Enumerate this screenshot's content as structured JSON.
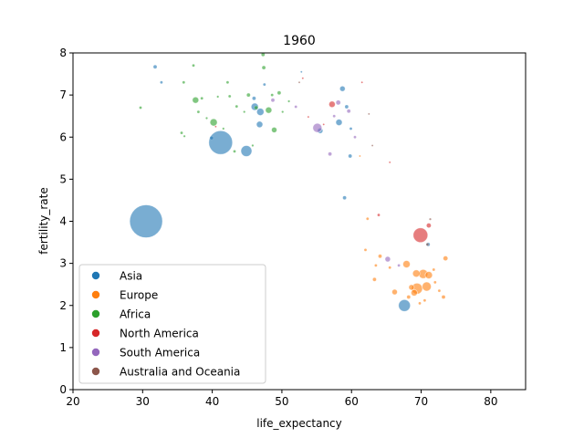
{
  "chart_data": {
    "type": "scatter",
    "title": "1960",
    "xlabel": "life_expectancy",
    "ylabel": "fertility_rate",
    "xlim": [
      20,
      85
    ],
    "ylim": [
      0,
      8
    ],
    "x_ticks": [
      20,
      30,
      40,
      50,
      60,
      70,
      80
    ],
    "y_ticks": [
      0,
      1,
      2,
      3,
      4,
      5,
      6,
      7,
      8
    ],
    "grid": false,
    "legend_position": "lower-left",
    "point_alpha": 0.6,
    "size_encodes": "population",
    "series": [
      {
        "name": "Asia",
        "color": "#1f77b4",
        "points": [
          {
            "x": 30.5,
            "y": 4.0,
            "r": 18
          },
          {
            "x": 41.2,
            "y": 5.87,
            "r": 13
          },
          {
            "x": 67.6,
            "y": 2.0,
            "r": 6.5
          },
          {
            "x": 44.9,
            "y": 5.67,
            "r": 6
          },
          {
            "x": 46.9,
            "y": 6.6,
            "r": 4
          },
          {
            "x": 46.1,
            "y": 6.72,
            "r": 4
          },
          {
            "x": 46.8,
            "y": 6.3,
            "r": 3.5
          },
          {
            "x": 58.2,
            "y": 6.35,
            "r": 3.5
          },
          {
            "x": 55.5,
            "y": 6.15,
            "r": 3
          },
          {
            "x": 58.7,
            "y": 7.15,
            "r": 3
          },
          {
            "x": 59.8,
            "y": 5.55,
            "r": 2
          },
          {
            "x": 59.0,
            "y": 4.56,
            "r": 2
          },
          {
            "x": 46.0,
            "y": 6.92,
            "r": 2
          },
          {
            "x": 31.8,
            "y": 7.67,
            "r": 2
          },
          {
            "x": 32.7,
            "y": 7.3,
            "r": 1.5
          },
          {
            "x": 39.9,
            "y": 5.98,
            "r": 2
          },
          {
            "x": 59.3,
            "y": 6.72,
            "r": 2
          },
          {
            "x": 59.9,
            "y": 6.2,
            "r": 1.5
          },
          {
            "x": 47.5,
            "y": 7.25,
            "r": 1.5
          },
          {
            "x": 52.8,
            "y": 7.55,
            "r": 1
          },
          {
            "x": 71.0,
            "y": 3.45,
            "r": 2
          }
        ]
      },
      {
        "name": "Europe",
        "color": "#ff7f0e",
        "points": [
          {
            "x": 69.4,
            "y": 2.4,
            "r": 6
          },
          {
            "x": 70.8,
            "y": 2.45,
            "r": 5
          },
          {
            "x": 70.3,
            "y": 2.75,
            "r": 5
          },
          {
            "x": 69.3,
            "y": 2.76,
            "r": 4
          },
          {
            "x": 67.9,
            "y": 2.98,
            "r": 4
          },
          {
            "x": 71.1,
            "y": 2.72,
            "r": 4
          },
          {
            "x": 69.0,
            "y": 2.3,
            "r": 3.5
          },
          {
            "x": 66.2,
            "y": 2.32,
            "r": 3
          },
          {
            "x": 68.6,
            "y": 2.43,
            "r": 3
          },
          {
            "x": 73.5,
            "y": 3.12,
            "r": 2.5
          },
          {
            "x": 64.1,
            "y": 3.17,
            "r": 2
          },
          {
            "x": 63.3,
            "y": 2.62,
            "r": 2
          },
          {
            "x": 62.3,
            "y": 4.06,
            "r": 1.5
          },
          {
            "x": 63.5,
            "y": 2.95,
            "r": 1.5
          },
          {
            "x": 73.2,
            "y": 2.2,
            "r": 2
          },
          {
            "x": 72.0,
            "y": 2.55,
            "r": 1.5
          },
          {
            "x": 68.2,
            "y": 2.2,
            "r": 2
          },
          {
            "x": 70.5,
            "y": 2.12,
            "r": 1.5
          },
          {
            "x": 71.8,
            "y": 2.85,
            "r": 1.5
          },
          {
            "x": 65.5,
            "y": 2.9,
            "r": 1.5
          },
          {
            "x": 72.6,
            "y": 2.35,
            "r": 1.5
          },
          {
            "x": 69.8,
            "y": 2.05,
            "r": 1.5
          },
          {
            "x": 62.0,
            "y": 3.32,
            "r": 1.5
          },
          {
            "x": 61.2,
            "y": 5.55,
            "r": 1
          }
        ]
      },
      {
        "name": "Africa",
        "color": "#2ca02c",
        "points": [
          {
            "x": 40.2,
            "y": 6.35,
            "r": 4
          },
          {
            "x": 37.6,
            "y": 6.88,
            "r": 3.5
          },
          {
            "x": 48.1,
            "y": 6.64,
            "r": 3.5
          },
          {
            "x": 48.9,
            "y": 6.17,
            "r": 3
          },
          {
            "x": 47.3,
            "y": 7.96,
            "r": 2
          },
          {
            "x": 47.4,
            "y": 7.65,
            "r": 2
          },
          {
            "x": 49.6,
            "y": 7.05,
            "r": 2
          },
          {
            "x": 35.9,
            "y": 7.3,
            "r": 1.5
          },
          {
            "x": 37.3,
            "y": 7.7,
            "r": 1.5
          },
          {
            "x": 38.0,
            "y": 6.6,
            "r": 1.5
          },
          {
            "x": 42.2,
            "y": 7.3,
            "r": 1.5
          },
          {
            "x": 29.7,
            "y": 6.7,
            "r": 1.5
          },
          {
            "x": 35.6,
            "y": 6.1,
            "r": 1.5
          },
          {
            "x": 36.0,
            "y": 6.02,
            "r": 1.2
          },
          {
            "x": 38.5,
            "y": 6.92,
            "r": 1.5
          },
          {
            "x": 42.5,
            "y": 6.97,
            "r": 1.5
          },
          {
            "x": 43.5,
            "y": 6.73,
            "r": 1.5
          },
          {
            "x": 45.2,
            "y": 7.0,
            "r": 2
          },
          {
            "x": 46.3,
            "y": 6.7,
            "r": 2
          },
          {
            "x": 48.6,
            "y": 7.0,
            "r": 1.5
          },
          {
            "x": 43.2,
            "y": 5.66,
            "r": 1.5
          },
          {
            "x": 50.1,
            "y": 6.6,
            "r": 1.2
          },
          {
            "x": 40.8,
            "y": 6.96,
            "r": 1.2
          },
          {
            "x": 44.6,
            "y": 6.6,
            "r": 1.2
          },
          {
            "x": 39.2,
            "y": 6.45,
            "r": 1.2
          },
          {
            "x": 41.6,
            "y": 6.2,
            "r": 1.2
          },
          {
            "x": 45.8,
            "y": 5.8,
            "r": 1.2
          },
          {
            "x": 51.0,
            "y": 6.85,
            "r": 1.2
          }
        ]
      },
      {
        "name": "North America",
        "color": "#d62728",
        "points": [
          {
            "x": 69.9,
            "y": 3.67,
            "r": 8
          },
          {
            "x": 57.2,
            "y": 6.78,
            "r": 3.5
          },
          {
            "x": 71.1,
            "y": 3.9,
            "r": 2.5
          },
          {
            "x": 63.9,
            "y": 4.15,
            "r": 1.5
          },
          {
            "x": 53.0,
            "y": 7.4,
            "r": 1
          },
          {
            "x": 40.5,
            "y": 6.25,
            "r": 1
          },
          {
            "x": 56.0,
            "y": 6.3,
            "r": 1
          },
          {
            "x": 61.5,
            "y": 7.3,
            "r": 1
          },
          {
            "x": 65.5,
            "y": 5.4,
            "r": 1
          },
          {
            "x": 53.8,
            "y": 6.48,
            "r": 1
          }
        ]
      },
      {
        "name": "South America",
        "color": "#9467bd",
        "points": [
          {
            "x": 55.1,
            "y": 6.22,
            "r": 5
          },
          {
            "x": 65.2,
            "y": 3.1,
            "r": 3
          },
          {
            "x": 58.1,
            "y": 6.82,
            "r": 2.5
          },
          {
            "x": 48.7,
            "y": 6.88,
            "r": 2
          },
          {
            "x": 56.9,
            "y": 5.6,
            "r": 2
          },
          {
            "x": 59.6,
            "y": 6.62,
            "r": 2
          },
          {
            "x": 60.5,
            "y": 6.0,
            "r": 1.5
          },
          {
            "x": 57.5,
            "y": 6.5,
            "r": 1.5
          },
          {
            "x": 52.0,
            "y": 6.72,
            "r": 1.5
          },
          {
            "x": 66.8,
            "y": 2.95,
            "r": 1.5
          }
        ]
      },
      {
        "name": "Australia and Oceania",
        "color": "#8c564b",
        "points": [
          {
            "x": 70.9,
            "y": 3.45,
            "r": 1.5
          },
          {
            "x": 71.3,
            "y": 4.05,
            "r": 1.2
          },
          {
            "x": 63.0,
            "y": 5.8,
            "r": 1
          },
          {
            "x": 52.5,
            "y": 7.3,
            "r": 1
          },
          {
            "x": 62.5,
            "y": 6.55,
            "r": 1
          }
        ]
      }
    ]
  }
}
